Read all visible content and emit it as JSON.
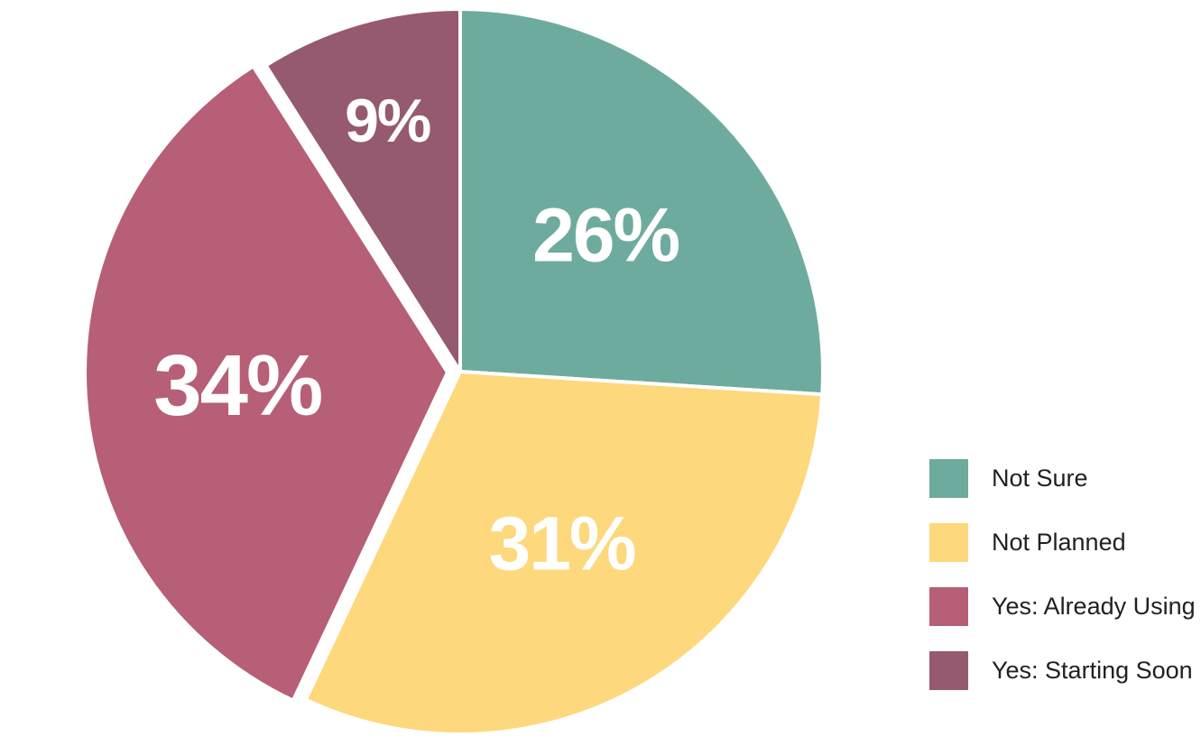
{
  "chart_data": {
    "type": "pie",
    "title": "",
    "slices": [
      {
        "label": "Not Sure",
        "value": 26,
        "display": "26%",
        "color": "#6eab9f"
      },
      {
        "label": "Not Planned",
        "value": 31,
        "display": "31%",
        "color": "#fdd87c"
      },
      {
        "label": "Yes: Already Using",
        "value": 34,
        "display": "34%",
        "color": "#b65f76"
      },
      {
        "label": "Yes: Starting Soon",
        "value": 9,
        "display": "9%",
        "color": "#955a70"
      }
    ],
    "exploded_slice": "Yes: Already Using",
    "start": "top, clockwise",
    "legend_position": "bottom-right"
  },
  "legend": {
    "items": [
      {
        "label": "Not Sure",
        "color": "#6eab9f"
      },
      {
        "label": "Not Planned",
        "color": "#fdd87c"
      },
      {
        "label": "Yes: Already Using",
        "color": "#b65f76"
      },
      {
        "label": "Yes: Starting Soon",
        "color": "#955a70"
      }
    ]
  }
}
